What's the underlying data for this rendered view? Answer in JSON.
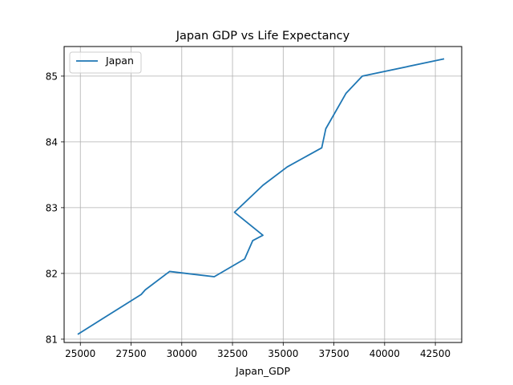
{
  "chart_data": {
    "type": "line",
    "title": "Japan GDP vs Life Expectancy",
    "xlabel": "Japan_GDP",
    "ylabel": "",
    "xlim": [
      24200,
      43800
    ],
    "ylim": [
      80.95,
      85.45
    ],
    "xticks": [
      25000,
      27500,
      30000,
      32500,
      35000,
      37500,
      40000,
      42500
    ],
    "yticks": [
      81,
      82,
      83,
      84,
      85
    ],
    "grid": true,
    "legend_position": "top-left",
    "series": [
      {
        "name": "Japan",
        "color": "#1f77b4",
        "x": [
          24900,
          28000,
          28200,
          29400,
          31600,
          33100,
          33500,
          34000,
          32600,
          34000,
          35200,
          36900,
          37100,
          38100,
          38900,
          42900
        ],
        "y": [
          81.08,
          81.68,
          81.75,
          82.03,
          81.95,
          82.22,
          82.5,
          82.58,
          82.93,
          83.34,
          83.62,
          83.91,
          84.2,
          84.74,
          85.0,
          85.26
        ]
      }
    ]
  }
}
